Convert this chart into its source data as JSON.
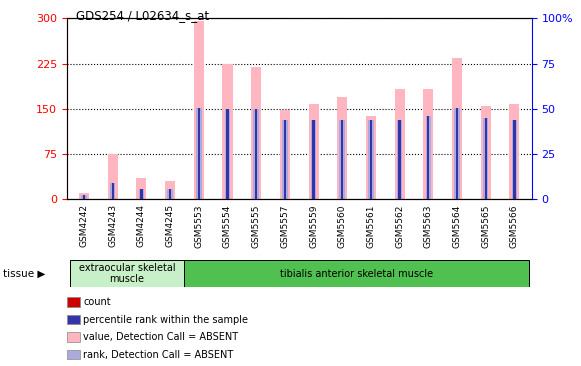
{
  "title": "GDS254 / L02634_s_at",
  "samples": [
    "GSM4242",
    "GSM4243",
    "GSM4244",
    "GSM4245",
    "GSM5553",
    "GSM5554",
    "GSM5555",
    "GSM5557",
    "GSM5559",
    "GSM5560",
    "GSM5561",
    "GSM5562",
    "GSM5563",
    "GSM5564",
    "GSM5565",
    "GSM5566"
  ],
  "pink_values": [
    10,
    75,
    35,
    30,
    295,
    225,
    220,
    148,
    158,
    170,
    138,
    183,
    183,
    235,
    155,
    158
  ],
  "blue_rank_values": [
    8,
    28,
    17,
    17,
    152,
    150,
    150,
    132,
    132,
    132,
    132,
    132,
    138,
    152,
    135,
    132
  ],
  "count_values": [
    8,
    8,
    8,
    8,
    8,
    8,
    8,
    8,
    8,
    8,
    8,
    8,
    8,
    8,
    8,
    8
  ],
  "percentile_values": [
    8,
    28,
    17,
    17,
    152,
    150,
    150,
    132,
    132,
    132,
    132,
    132,
    138,
    152,
    135,
    132
  ],
  "tissue_groups": [
    {
      "label": "extraocular skeletal\nmuscle",
      "start": 0,
      "end": 4,
      "color": "#c8f0c8"
    },
    {
      "label": "tibialis anterior skeletal muscle",
      "start": 4,
      "end": 16,
      "color": "#50c050"
    }
  ],
  "ylim_left": [
    0,
    300
  ],
  "ylim_right": [
    0,
    100
  ],
  "yticks_left": [
    0,
    75,
    150,
    225,
    300
  ],
  "ytick_labels_right": [
    "0",
    "25",
    "50",
    "75",
    "100%"
  ],
  "yticks_right": [
    0,
    25,
    50,
    75,
    100
  ],
  "pink_color": "#FFB6C1",
  "blue_rank_color": "#aaaadd",
  "red_color": "#CC0000",
  "dark_blue_color": "#3333aa",
  "bar_width": 0.35,
  "thin_bar_width": 0.08,
  "background_color": "#FFFFFF",
  "xtick_bg": "#cccccc",
  "tissue_label": "tissue ▶"
}
